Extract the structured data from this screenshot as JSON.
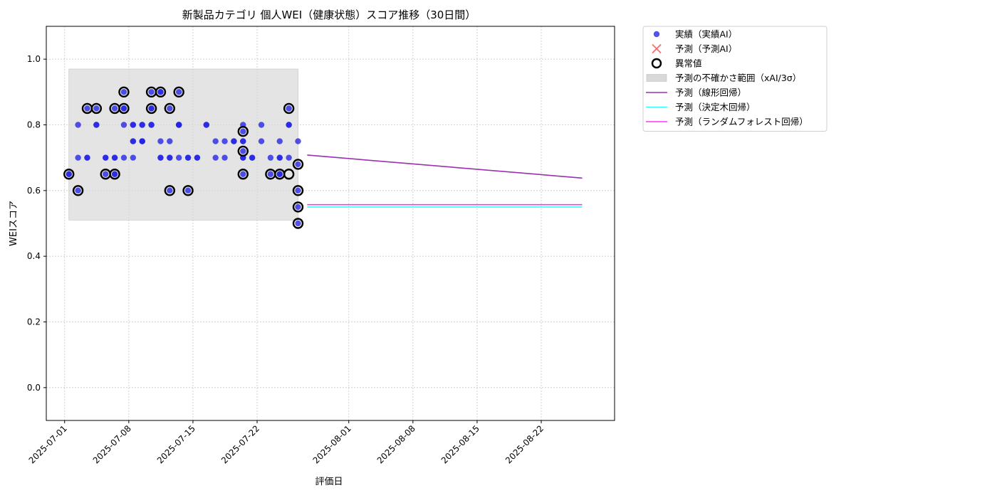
{
  "chart_data": {
    "type": "scatter",
    "title": "新製品カテゴリ 個人WEI（健康状態）スコア推移（30日間）",
    "xlabel": "評価日",
    "ylabel": "WEIスコア",
    "xlim": [
      "2025-06-29",
      "2025-08-30"
    ],
    "ylim": [
      -0.1,
      1.1
    ],
    "yticks": [
      0.0,
      0.2,
      0.4,
      0.6,
      0.8,
      1.0
    ],
    "ytick_labels": [
      "0.0",
      "0.2",
      "0.4",
      "0.6",
      "0.8",
      "1.0"
    ],
    "xticks": [
      "2025-07-01",
      "2025-07-08",
      "2025-07-15",
      "2025-07-22",
      "2025-08-01",
      "2025-08-08",
      "2025-08-15",
      "2025-08-22"
    ],
    "grid": true,
    "legend_position": "outside-top-right",
    "colors": {
      "actual": "#2323e6",
      "predicted_marker": "#ff4444",
      "anomaly_edge": "#000000",
      "uncertainty_fill": "#d9d9d9",
      "linear": "#9b30b0",
      "tree": "#33ffff",
      "forest": "#ff33ff"
    },
    "legend": [
      {
        "key": "actual",
        "label": "実績（実績AI）"
      },
      {
        "key": "predicted",
        "label": "予測（予測AI）"
      },
      {
        "key": "anomaly",
        "label": "異常値"
      },
      {
        "key": "band",
        "label": "予測の不確かさ範囲（xAI/3σ）"
      },
      {
        "key": "linear",
        "label": "予測（線形回帰）"
      },
      {
        "key": "tree",
        "label": "予測（決定木回帰）"
      },
      {
        "key": "forest",
        "label": "予測（ランダムフォレスト回帰）"
      }
    ],
    "uncertainty_band": {
      "x_start": "2025-07-01",
      "x_end": "2025-07-26",
      "y_low": 0.51,
      "y_high": 0.97
    },
    "actual_points": [
      {
        "x": "2025-07-01",
        "y": 0.65
      },
      {
        "x": "2025-07-01",
        "y": 0.65
      },
      {
        "x": "2025-07-02",
        "y": 0.8
      },
      {
        "x": "2025-07-02",
        "y": 0.6
      },
      {
        "x": "2025-07-02",
        "y": 0.7
      },
      {
        "x": "2025-07-03",
        "y": 0.7
      },
      {
        "x": "2025-07-03",
        "y": 0.85
      },
      {
        "x": "2025-07-03",
        "y": 0.7
      },
      {
        "x": "2025-07-04",
        "y": 0.8
      },
      {
        "x": "2025-07-04",
        "y": 0.85
      },
      {
        "x": "2025-07-04",
        "y": 0.8
      },
      {
        "x": "2025-07-05",
        "y": 0.7
      },
      {
        "x": "2025-07-05",
        "y": 0.65
      },
      {
        "x": "2025-07-05",
        "y": 0.7
      },
      {
        "x": "2025-07-06",
        "y": 0.7
      },
      {
        "x": "2025-07-06",
        "y": 0.65
      },
      {
        "x": "2025-07-06",
        "y": 0.85
      },
      {
        "x": "2025-07-06",
        "y": 0.65
      },
      {
        "x": "2025-07-06",
        "y": 0.7
      },
      {
        "x": "2025-07-07",
        "y": 0.8
      },
      {
        "x": "2025-07-07",
        "y": 0.85
      },
      {
        "x": "2025-07-07",
        "y": 0.9
      },
      {
        "x": "2025-07-07",
        "y": 0.85
      },
      {
        "x": "2025-07-07",
        "y": 0.7
      },
      {
        "x": "2025-07-08",
        "y": 0.75
      },
      {
        "x": "2025-07-08",
        "y": 0.75
      },
      {
        "x": "2025-07-08",
        "y": 0.8
      },
      {
        "x": "2025-07-08",
        "y": 0.8
      },
      {
        "x": "2025-07-08",
        "y": 0.7
      },
      {
        "x": "2025-07-09",
        "y": 0.75
      },
      {
        "x": "2025-07-09",
        "y": 0.8
      },
      {
        "x": "2025-07-09",
        "y": 0.75
      },
      {
        "x": "2025-07-09",
        "y": 0.8
      },
      {
        "x": "2025-07-09",
        "y": 0.75
      },
      {
        "x": "2025-07-10",
        "y": 0.85
      },
      {
        "x": "2025-07-10",
        "y": 0.8
      },
      {
        "x": "2025-07-10",
        "y": 0.85
      },
      {
        "x": "2025-07-10",
        "y": 0.8
      },
      {
        "x": "2025-07-10",
        "y": 0.9
      },
      {
        "x": "2025-07-11",
        "y": 0.75
      },
      {
        "x": "2025-07-11",
        "y": 0.7
      },
      {
        "x": "2025-07-11",
        "y": 0.9
      },
      {
        "x": "2025-07-11",
        "y": 0.7
      },
      {
        "x": "2025-07-11",
        "y": 0.9
      },
      {
        "x": "2025-07-12",
        "y": 0.75
      },
      {
        "x": "2025-07-12",
        "y": 0.7
      },
      {
        "x": "2025-07-12",
        "y": 0.6
      },
      {
        "x": "2025-07-12",
        "y": 0.7
      },
      {
        "x": "2025-07-12",
        "y": 0.85
      },
      {
        "x": "2025-07-13",
        "y": 0.8
      },
      {
        "x": "2025-07-13",
        "y": 0.8
      },
      {
        "x": "2025-07-13",
        "y": 0.9
      },
      {
        "x": "2025-07-13",
        "y": 0.8
      },
      {
        "x": "2025-07-13",
        "y": 0.7
      },
      {
        "x": "2025-07-14",
        "y": 0.6
      },
      {
        "x": "2025-07-14",
        "y": 0.7
      },
      {
        "x": "2025-07-14",
        "y": 0.7
      },
      {
        "x": "2025-07-15",
        "y": 0.7
      },
      {
        "x": "2025-07-15",
        "y": 0.7
      },
      {
        "x": "2025-07-16",
        "y": 0.8
      },
      {
        "x": "2025-07-16",
        "y": 0.8
      },
      {
        "x": "2025-07-17",
        "y": 0.7
      },
      {
        "x": "2025-07-17",
        "y": 0.75
      },
      {
        "x": "2025-07-18",
        "y": 0.75
      },
      {
        "x": "2025-07-18",
        "y": 0.7
      },
      {
        "x": "2025-07-19",
        "y": 0.75
      },
      {
        "x": "2025-07-19",
        "y": 0.75
      },
      {
        "x": "2025-07-20",
        "y": 0.78
      },
      {
        "x": "2025-07-20",
        "y": 0.72
      },
      {
        "x": "2025-07-20",
        "y": 0.8
      },
      {
        "x": "2025-07-20",
        "y": 0.65
      },
      {
        "x": "2025-07-20",
        "y": 0.7
      },
      {
        "x": "2025-07-20",
        "y": 0.75
      },
      {
        "x": "2025-07-20",
        "y": 0.7
      },
      {
        "x": "2025-07-20",
        "y": 0.75
      },
      {
        "x": "2025-07-21",
        "y": 0.7
      },
      {
        "x": "2025-07-21",
        "y": 0.7
      },
      {
        "x": "2025-07-22",
        "y": 0.8
      },
      {
        "x": "2025-07-22",
        "y": 0.75
      },
      {
        "x": "2025-07-23",
        "y": 0.65
      },
      {
        "x": "2025-07-23",
        "y": 0.7
      },
      {
        "x": "2025-07-24",
        "y": 0.65
      },
      {
        "x": "2025-07-24",
        "y": 0.7
      },
      {
        "x": "2025-07-24",
        "y": 0.75
      },
      {
        "x": "2025-07-24",
        "y": 0.7
      },
      {
        "x": "2025-07-24",
        "y": 0.65
      },
      {
        "x": "2025-07-25",
        "y": 0.7
      },
      {
        "x": "2025-07-25",
        "y": 0.85
      },
      {
        "x": "2025-07-25",
        "y": 0.8
      },
      {
        "x": "2025-07-25",
        "y": 0.8
      },
      {
        "x": "2025-07-26",
        "y": 0.68
      },
      {
        "x": "2025-07-26",
        "y": 0.75
      },
      {
        "x": "2025-07-26",
        "y": 0.55
      },
      {
        "x": "2025-07-26",
        "y": 0.6
      },
      {
        "x": "2025-07-26",
        "y": 0.5
      }
    ],
    "anomaly_points": [
      {
        "x": "2025-07-01",
        "y": 0.65
      },
      {
        "x": "2025-07-02",
        "y": 0.6
      },
      {
        "x": "2025-07-03",
        "y": 0.85
      },
      {
        "x": "2025-07-04",
        "y": 0.85
      },
      {
        "x": "2025-07-05",
        "y": 0.65
      },
      {
        "x": "2025-07-06",
        "y": 0.65
      },
      {
        "x": "2025-07-06",
        "y": 0.85
      },
      {
        "x": "2025-07-07",
        "y": 0.85
      },
      {
        "x": "2025-07-07",
        "y": 0.9
      },
      {
        "x": "2025-07-10",
        "y": 0.85
      },
      {
        "x": "2025-07-10",
        "y": 0.9
      },
      {
        "x": "2025-07-11",
        "y": 0.9
      },
      {
        "x": "2025-07-12",
        "y": 0.6
      },
      {
        "x": "2025-07-12",
        "y": 0.85
      },
      {
        "x": "2025-07-13",
        "y": 0.9
      },
      {
        "x": "2025-07-14",
        "y": 0.6
      },
      {
        "x": "2025-07-20",
        "y": 0.78
      },
      {
        "x": "2025-07-20",
        "y": 0.72
      },
      {
        "x": "2025-07-20",
        "y": 0.65
      },
      {
        "x": "2025-07-23",
        "y": 0.65
      },
      {
        "x": "2025-07-24",
        "y": 0.65
      },
      {
        "x": "2025-07-25",
        "y": 0.65
      },
      {
        "x": "2025-07-25",
        "y": 0.85
      },
      {
        "x": "2025-07-26",
        "y": 0.68
      },
      {
        "x": "2025-07-26",
        "y": 0.6
      },
      {
        "x": "2025-07-26",
        "y": 0.55
      },
      {
        "x": "2025-07-26",
        "y": 0.5
      }
    ],
    "series": [
      {
        "name": "予測（線形回帰）",
        "key": "linear",
        "x": [
          "2025-07-27",
          "2025-08-26"
        ],
        "y": [
          0.708,
          0.638
        ]
      },
      {
        "name": "予測（決定木回帰）",
        "key": "tree",
        "x": [
          "2025-07-27",
          "2025-08-26"
        ],
        "y": [
          0.55,
          0.55
        ]
      },
      {
        "name": "予測（ランダムフォレスト回帰）",
        "key": "forest",
        "x": [
          "2025-07-27",
          "2025-08-26"
        ],
        "y": [
          0.557,
          0.557
        ]
      }
    ]
  }
}
